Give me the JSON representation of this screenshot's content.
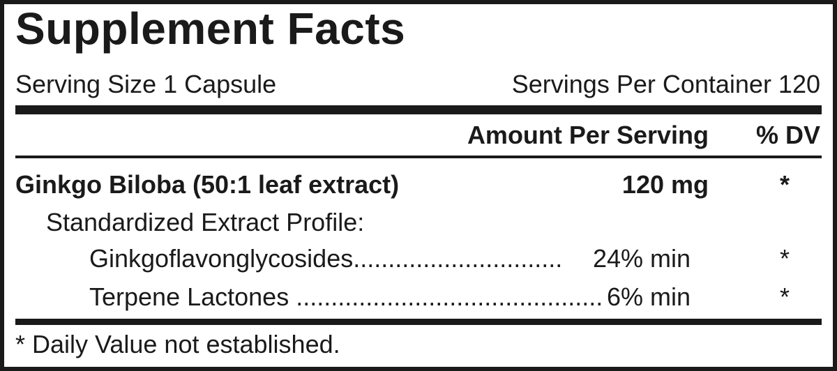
{
  "title": "Supplement Facts",
  "serving_size": "Serving Size 1 Capsule",
  "servings_per_container": "Servings Per Container 120",
  "header": {
    "amount": "Amount Per Serving",
    "dv": "% DV"
  },
  "rows": [
    {
      "name": "Ginkgo Biloba (50:1 leaf extract)",
      "amount": "120 mg",
      "dv": "*"
    },
    {
      "name": "Standardized Extract Profile:"
    },
    {
      "name": "Ginkgoflavonglycosides",
      "leader": "..............................",
      "amount": "24% min",
      "dv": "*"
    },
    {
      "name": "Terpene Lactones",
      "leader": "............................................",
      "amount": "6% min",
      "dv": "*"
    }
  ],
  "footnote": "* Daily Value not established."
}
